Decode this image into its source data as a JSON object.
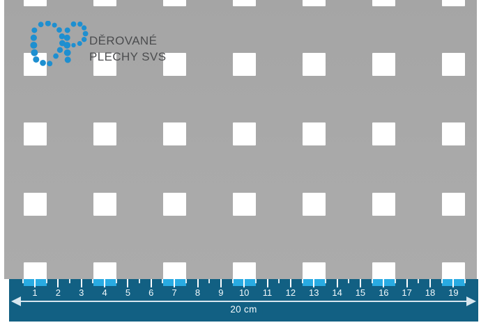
{
  "logo": {
    "icon": "dp-dot-monogram",
    "monogram": "DP",
    "line1": "DĚROVANÉ",
    "line2": "PLECHY SVS",
    "dot_color": "#1e8fd0",
    "text_color": "#4b4c4e"
  },
  "plate": {
    "material_color": "#a9a9a9",
    "hole_color": "#ffffff",
    "hole_shape": "square",
    "hole_size_cm": 1,
    "pitch_cm": 3,
    "hole_columns_cm": [
      1,
      4,
      7,
      10,
      13,
      16,
      19
    ],
    "visible_rows": 5
  },
  "ruler": {
    "band_color": "#126083",
    "highlight_color": "#29abe2",
    "tick_color": "#ffffff",
    "line_color": "#d8e7ef",
    "numbers": [
      "1",
      "2",
      "3",
      "4",
      "5",
      "6",
      "7",
      "8",
      "9",
      "10",
      "11",
      "12",
      "13",
      "14",
      "15",
      "16",
      "17",
      "18",
      "19"
    ],
    "length_label": "20 cm",
    "total_cm": 20
  }
}
